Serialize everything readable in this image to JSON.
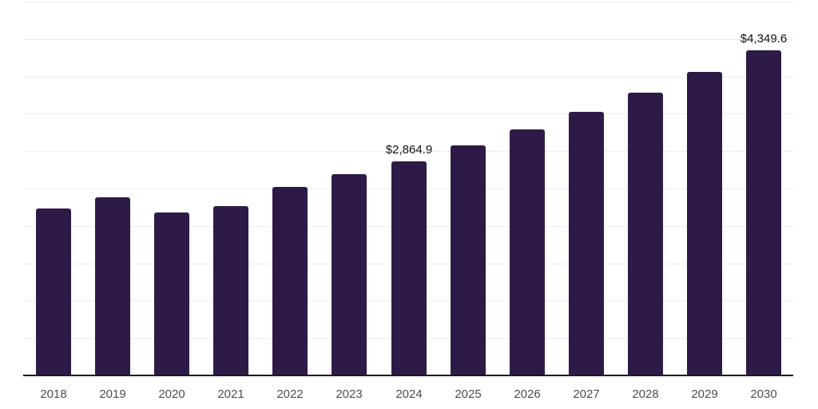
{
  "chart": {
    "background_color": "#ffffff",
    "bar_color": "#2e1a47",
    "grid_color": "#ededed",
    "axis_color": "#1a1a1a",
    "tick_label_color": "#4d4d4d",
    "data_label_color": "#111111"
  },
  "chart_data": {
    "type": "bar",
    "title": "",
    "xlabel": "",
    "ylabel": "",
    "categories": [
      "2018",
      "2019",
      "2020",
      "2021",
      "2022",
      "2023",
      "2024",
      "2025",
      "2026",
      "2027",
      "2028",
      "2029",
      "2030"
    ],
    "values": [
      2230,
      2380,
      2180,
      2270,
      2520,
      2690,
      2864.9,
      3080,
      3290,
      3530,
      3780,
      4060,
      4349.6
    ],
    "data_labels": [
      {
        "category": "2024",
        "text": "$2,864.9"
      },
      {
        "category": "2030",
        "text": "$4,349.6"
      }
    ],
    "ylim": [
      0,
      5000
    ],
    "y_gridline_step": 500,
    "y_tick_labels_visible": false,
    "grid": true,
    "legend": "none"
  }
}
